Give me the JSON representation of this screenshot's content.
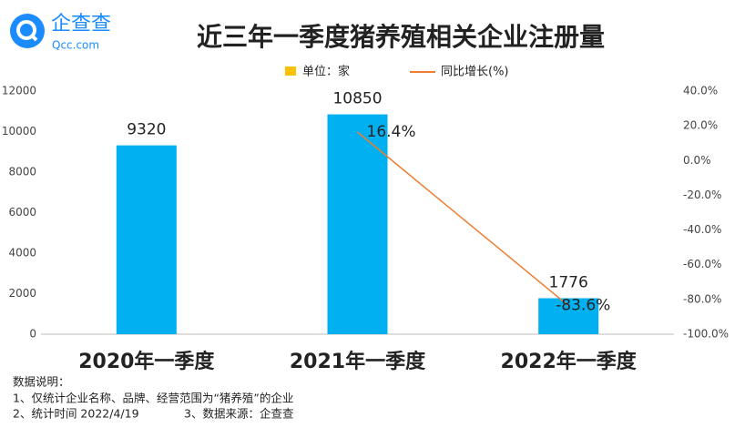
{
  "brand": {
    "name": "企查查",
    "site": "Qcc.com"
  },
  "chart_data": {
    "type": "bar_line",
    "title": "近三年一季度猪养殖相关企业注册量",
    "categories": [
      "2020年一季度",
      "2021年一季度",
      "2022年一季度"
    ],
    "series": [
      {
        "name": "单位：家",
        "color": "#00b0f0",
        "legend_color": "#ffc000",
        "values": [
          9320,
          10850,
          1776
        ]
      },
      {
        "name": "同比增长(%)",
        "color": "#ed7d31",
        "axis": "y2",
        "values": [
          null,
          16.4,
          -83.6
        ],
        "value_labels": [
          null,
          "16.4%",
          "-83.6%"
        ]
      }
    ],
    "ylim": [
      0,
      12000
    ],
    "yticks": [
      0,
      2000,
      4000,
      6000,
      8000,
      10000,
      12000
    ],
    "y2lim": [
      -100,
      40
    ],
    "y2ticks": [
      {
        "value": -100,
        "label": "-100.0%"
      },
      {
        "value": -80,
        "label": "-80.0%"
      },
      {
        "value": -60,
        "label": "-60.0%"
      },
      {
        "value": -40,
        "label": "-40.0%"
      },
      {
        "value": -20,
        "label": "-20.0%"
      },
      {
        "value": 0,
        "label": "0.0%"
      },
      {
        "value": 20,
        "label": "20.0%"
      },
      {
        "value": 40,
        "label": "40.0%"
      }
    ],
    "legend": "top",
    "notes": [
      "数据说明：",
      "1、仅统计企业名称、品牌、经营范围为“猪养殖”的企业",
      "2、统计时间 2022/4/19",
      "3、数据来源：企查查"
    ]
  }
}
